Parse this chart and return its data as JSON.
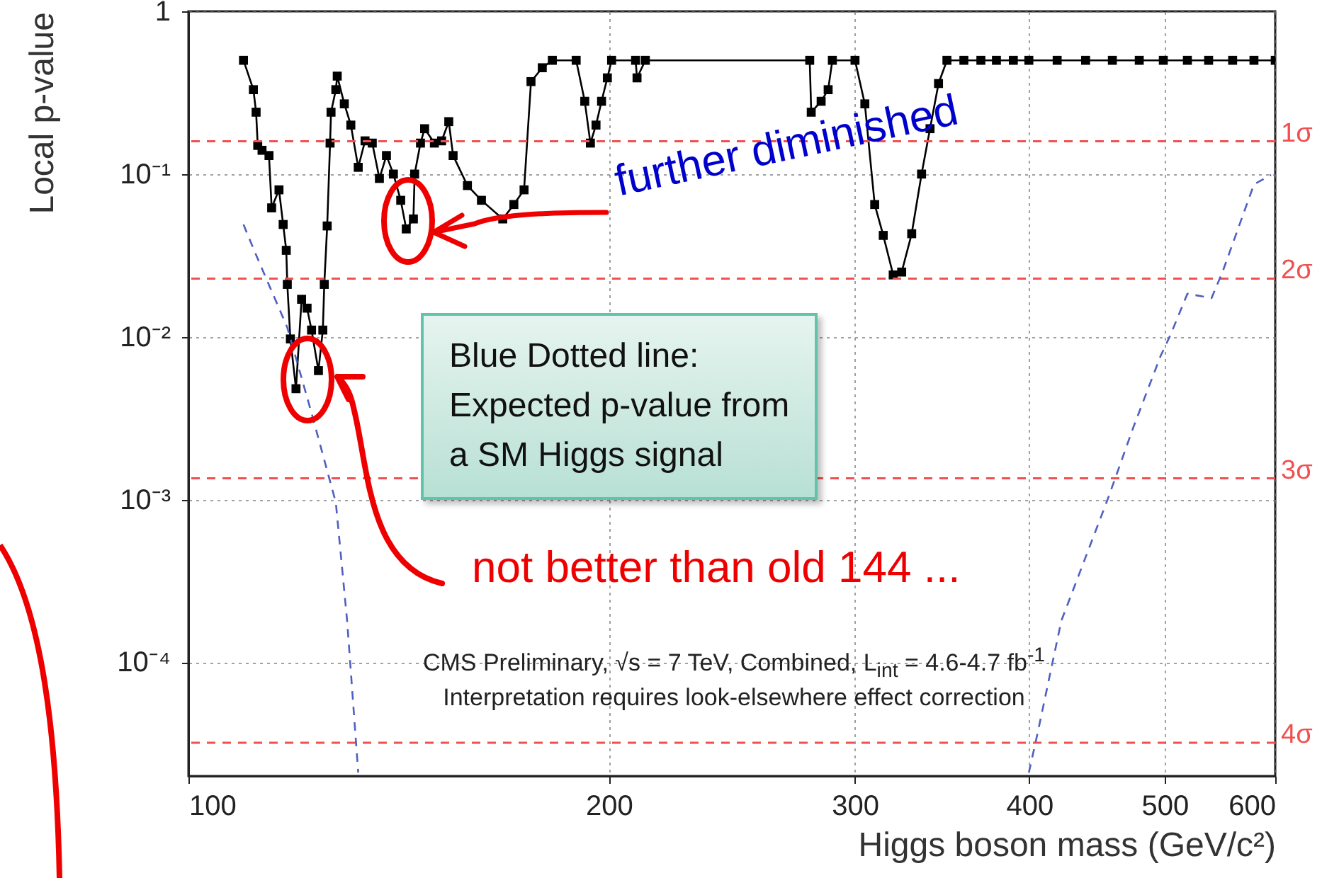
{
  "chart_data": {
    "type": "line",
    "xlabel": "Higgs boson mass (GeV/c²)",
    "ylabel": "Local p-value",
    "log": "xy",
    "grid": true,
    "marker": "square",
    "xlim": [
      100,
      600
    ],
    "xticks": [
      100,
      200,
      300,
      400,
      500,
      600
    ],
    "ylim": [
      2e-05,
      1
    ],
    "yticks": [
      {
        "value": 1,
        "label": "1"
      },
      {
        "value": 0.1,
        "label": "10⁻¹"
      },
      {
        "value": 0.01,
        "label": "10⁻²"
      },
      {
        "value": 0.001,
        "label": "10⁻³"
      },
      {
        "value": 0.0001,
        "label": "10⁻⁴"
      }
    ],
    "series": [
      {
        "color": "#000000",
        "x": [
          109.5,
          111.3,
          111.8,
          112.1,
          112.9,
          114.2,
          114.7,
          116.1,
          116.9,
          117.5,
          117.7,
          118.3,
          119.4,
          120.5,
          121.6,
          122.5,
          123.9,
          124.8,
          125.1,
          125.7,
          126.3,
          126.5,
          127.5,
          127.8,
          129.3,
          130.7,
          132.3,
          133.8,
          135.4,
          137.0,
          138.6,
          140.2,
          141.9,
          143.2,
          144.9,
          145.2,
          146.6,
          147.6,
          150.0,
          151.8,
          153.6,
          154.7,
          158.4,
          162.1,
          167.9,
          171.0,
          173.9,
          175.9,
          179.2,
          182.2,
          189.5,
          192.2,
          194.0,
          195.8,
          197.6,
          199.5,
          200.9,
          209.0,
          209.5,
          212.4,
          278.5,
          279.2,
          283.8,
          287.1,
          289.1,
          300.1,
          305.0,
          310.0,
          314.4,
          319.6,
          324.1,
          329.5,
          334.9,
          339.6,
          344.4,
          349.2,
          359.1,
          369.3,
          378.9,
          389.6,
          399.7,
          418.8,
          438.9,
          458.7,
          479.5,
          498.9,
          519.1,
          537.6,
          559.3,
          579.3,
          600
        ],
        "values": [
          0.5,
          0.33,
          0.24,
          0.15,
          0.14,
          0.13,
          0.062,
          0.08,
          0.049,
          0.034,
          0.021,
          0.0097,
          0.0048,
          0.017,
          0.015,
          0.011,
          0.0062,
          0.011,
          0.021,
          0.048,
          0.155,
          0.24,
          0.33,
          0.4,
          0.27,
          0.2,
          0.11,
          0.16,
          0.155,
          0.094,
          0.13,
          0.1,
          0.069,
          0.046,
          0.053,
          0.1,
          0.155,
          0.19,
          0.155,
          0.16,
          0.21,
          0.13,
          0.085,
          0.069,
          0.053,
          0.065,
          0.08,
          0.37,
          0.45,
          0.5,
          0.5,
          0.28,
          0.155,
          0.2,
          0.28,
          0.39,
          0.5,
          0.5,
          0.39,
          0.5,
          0.5,
          0.24,
          0.28,
          0.33,
          0.5,
          0.5,
          0.27,
          0.065,
          0.042,
          0.024,
          0.025,
          0.043,
          0.1,
          0.19,
          0.36,
          0.5,
          0.5,
          0.5,
          0.5,
          0.5,
          0.5,
          0.5,
          0.5,
          0.5,
          0.5,
          0.5,
          0.5,
          0.5,
          0.5,
          0.5,
          0.5
        ]
      },
      {
        "color": "#5060c0",
        "line_style": "dashed",
        "marker": "none",
        "x": [
          109.5,
          111.6,
          117.7,
          122.5,
          127.5,
          129.9,
          132.3,
          300,
          399.7,
          405.3,
          421.7,
          455.5,
          475.0,
          496.6,
          504.9,
          519.1,
          540.2,
          550.4,
          579.3,
          595.8
        ],
        "values": [
          0.049,
          0.033,
          0.0114,
          0.0034,
          0.00096,
          0.00018,
          2.1e-05,
          null,
          2.1e-05,
          3.6e-05,
          0.00018,
          0.00102,
          0.0028,
          0.0076,
          0.0103,
          0.0184,
          0.0173,
          0.0254,
          0.0863,
          0.099
        ]
      }
    ],
    "ref_lines": [
      {
        "axis": "y",
        "value": 0.159,
        "label": "1σ",
        "color": "#f05050",
        "line_style": "dashed"
      },
      {
        "axis": "y",
        "value": 0.0228,
        "label": "2σ",
        "color": "#f05050",
        "line_style": "dashed"
      },
      {
        "axis": "y",
        "value": 0.00135,
        "label": "3σ",
        "color": "#f05050",
        "line_style": "dashed"
      },
      {
        "axis": "y",
        "value": 3.2e-05,
        "label": "4σ",
        "color": "#f05050",
        "line_style": "dashed"
      }
    ],
    "annotations": [
      "further diminished",
      "Blue Dotted line:\nExpected p-value from\na SM Higgs signal",
      "not better than old 144 ...",
      "CMS Preliminary, √s = 7 TeV, Combined, L$_{int}$ = 4.6-4.7 fb$^{-1}$",
      "Interpretation requires look-elsewhere effect correction"
    ]
  }
}
